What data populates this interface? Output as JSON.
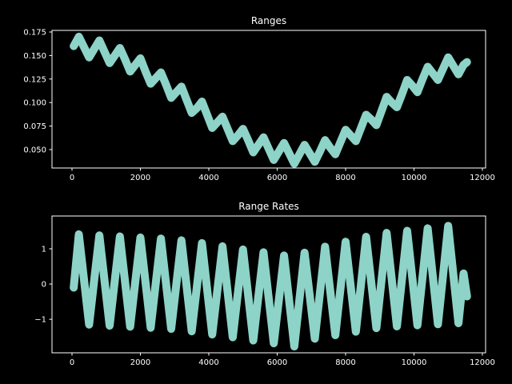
{
  "chart_data": [
    {
      "type": "line",
      "title": "Ranges",
      "color": "#8dd3c7",
      "x": [
        50,
        200,
        350,
        500,
        650,
        800,
        950,
        1100,
        1250,
        1400,
        1550,
        1700,
        1850,
        2000,
        2150,
        2300,
        2450,
        2600,
        2750,
        2900,
        3050,
        3200,
        3350,
        3500,
        3650,
        3800,
        3950,
        4100,
        4250,
        4400,
        4550,
        4700,
        4850,
        5000,
        5150,
        5300,
        5450,
        5600,
        5750,
        5900,
        6050,
        6200,
        6350,
        6500,
        6650,
        6800,
        6950,
        7100,
        7250,
        7400,
        7550,
        7700,
        7850,
        8000,
        8150,
        8300,
        8450,
        8600,
        8750,
        8900,
        9050,
        9200,
        9350,
        9500,
        9650,
        9800,
        9950,
        10100,
        10250,
        10400,
        10550,
        10700,
        10850,
        11000,
        11150,
        11300,
        11450,
        11550
      ],
      "values": [
        0.16,
        0.17,
        0.159,
        0.148,
        0.157,
        0.166,
        0.154,
        0.142,
        0.15,
        0.158,
        0.146,
        0.133,
        0.14,
        0.147,
        0.133,
        0.12,
        0.126,
        0.132,
        0.119,
        0.105,
        0.111,
        0.117,
        0.103,
        0.089,
        0.094,
        0.101,
        0.087,
        0.073,
        0.079,
        0.085,
        0.072,
        0.059,
        0.065,
        0.072,
        0.06,
        0.047,
        0.055,
        0.063,
        0.051,
        0.039,
        0.048,
        0.057,
        0.046,
        0.035,
        0.045,
        0.055,
        0.046,
        0.037,
        0.048,
        0.06,
        0.052,
        0.045,
        0.058,
        0.071,
        0.065,
        0.059,
        0.073,
        0.087,
        0.082,
        0.076,
        0.091,
        0.106,
        0.1,
        0.095,
        0.109,
        0.124,
        0.118,
        0.111,
        0.125,
        0.138,
        0.131,
        0.124,
        0.136,
        0.148,
        0.139,
        0.13,
        0.14,
        0.143
      ],
      "xlim": [
        -585,
        12094
      ],
      "ylim": [
        0.0304,
        0.1767
      ],
      "xticks": [
        0,
        2000,
        4000,
        6000,
        8000,
        10000,
        12000
      ],
      "yticks": [
        {
          "value": 0.05,
          "label": "0.050"
        },
        {
          "value": 0.075,
          "label": "0.075"
        },
        {
          "value": 0.1,
          "label": "0.100"
        },
        {
          "value": 0.125,
          "label": "0.125"
        },
        {
          "value": 0.15,
          "label": "0.150"
        },
        {
          "value": 0.175,
          "label": "0.175"
        }
      ]
    },
    {
      "type": "line",
      "title": "Range Rates",
      "color": "#8dd3c7",
      "x": [
        50,
        200,
        350,
        500,
        650,
        800,
        950,
        1100,
        1250,
        1400,
        1550,
        1700,
        1850,
        2000,
        2150,
        2300,
        2450,
        2600,
        2750,
        2900,
        3050,
        3200,
        3350,
        3500,
        3650,
        3800,
        3950,
        4100,
        4250,
        4400,
        4550,
        4700,
        4850,
        5000,
        5150,
        5300,
        5450,
        5600,
        5750,
        5900,
        6050,
        6200,
        6350,
        6500,
        6650,
        6800,
        6950,
        7100,
        7250,
        7400,
        7550,
        7700,
        7850,
        8000,
        8150,
        8300,
        8450,
        8600,
        8750,
        8900,
        9050,
        9200,
        9350,
        9500,
        9650,
        9800,
        9950,
        10100,
        10250,
        10400,
        10550,
        10700,
        10850,
        11000,
        11150,
        11300,
        11450,
        11550
      ],
      "values": [
        -0.1,
        1.41,
        0.13,
        -1.15,
        0.12,
        1.38,
        0.1,
        -1.18,
        0.09,
        1.35,
        0.07,
        -1.21,
        0.06,
        1.32,
        0.04,
        -1.24,
        0.03,
        1.29,
        0.01,
        -1.27,
        -0.01,
        1.24,
        -0.05,
        -1.34,
        -0.09,
        1.16,
        -0.14,
        -1.43,
        -0.18,
        1.07,
        -0.22,
        -1.51,
        -0.26,
        0.98,
        -0.31,
        -1.6,
        -0.35,
        0.9,
        -0.39,
        -1.68,
        -0.44,
        0.81,
        -0.48,
        -1.77,
        -0.44,
        0.89,
        -0.32,
        -1.55,
        -0.25,
        1.06,
        -0.19,
        -1.45,
        -0.13,
        1.2,
        -0.07,
        -1.35,
        -0.01,
        1.34,
        0.05,
        -1.25,
        0.1,
        1.45,
        0.13,
        -1.2,
        0.15,
        1.51,
        0.18,
        -1.17,
        0.2,
        1.58,
        0.22,
        -1.14,
        0.25,
        1.65,
        0.27,
        -1.11,
        0.3,
        -0.35
      ],
      "xlim": [
        -585,
        12094
      ],
      "ylim": [
        -1.95,
        1.93
      ],
      "xticks": [
        0,
        2000,
        4000,
        6000,
        8000,
        10000,
        12000
      ],
      "yticks": [
        {
          "value": -1,
          "label": "−1"
        },
        0,
        1
      ]
    }
  ]
}
